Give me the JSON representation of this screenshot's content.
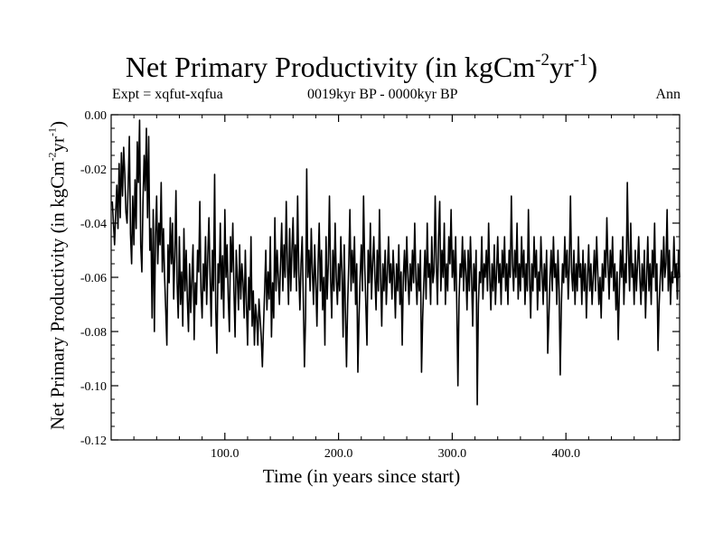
{
  "header": {
    "title_main": "Net Primary Productivity (in kgCm",
    "title_exp1": "-2",
    "title_mid": "yr",
    "title_exp2": "-1",
    "title_end": ")",
    "expt": "Expt = xqfut-xqfua",
    "period": "0019kyr BP - 0000kyr BP",
    "season": "Ann"
  },
  "axes": {
    "xlabel": "Time (in years since start)",
    "ylabel_main": "Net Primary Productivity (in kgCm",
    "ylabel_exp1": "-2",
    "ylabel_mid": "yr",
    "ylabel_exp2": "-1",
    "ylabel_end": ")"
  },
  "chart_data": {
    "type": "line",
    "title": "Net Primary Productivity (in kgCm-2yr-1)",
    "xlabel": "Time (in years since start)",
    "ylabel": "Net Primary Productivity (in kgCm-2yr-1)",
    "xlim": [
      0,
      500
    ],
    "ylim": [
      -0.12,
      0.0
    ],
    "x_ticks": [
      100,
      200,
      300,
      400
    ],
    "x_tick_labels": [
      "100.0",
      "200.0",
      "300.0",
      "400.0"
    ],
    "y_ticks": [
      0.0,
      -0.02,
      -0.04,
      -0.06,
      -0.08,
      -0.1,
      -0.12
    ],
    "y_tick_labels": [
      "0.00",
      "-0.02",
      "-0.04",
      "-0.06",
      "-0.08",
      "-0.10",
      "-0.12"
    ],
    "series": [
      {
        "name": "Ann",
        "x_start": 1,
        "x_step": 1,
        "values": [
          -0.032,
          -0.04,
          -0.048,
          -0.036,
          -0.026,
          -0.042,
          -0.018,
          -0.038,
          -0.014,
          -0.03,
          -0.012,
          -0.022,
          -0.036,
          -0.04,
          -0.026,
          -0.008,
          -0.044,
          -0.055,
          -0.03,
          -0.048,
          -0.024,
          -0.042,
          -0.01,
          -0.025,
          -0.002,
          -0.048,
          -0.058,
          -0.032,
          -0.015,
          -0.028,
          -0.005,
          -0.038,
          -0.008,
          -0.05,
          -0.042,
          -0.075,
          -0.035,
          -0.08,
          -0.045,
          -0.03,
          -0.055,
          -0.04,
          -0.048,
          -0.025,
          -0.058,
          -0.042,
          -0.06,
          -0.072,
          -0.085,
          -0.048,
          -0.062,
          -0.038,
          -0.055,
          -0.04,
          -0.068,
          -0.052,
          -0.028,
          -0.062,
          -0.075,
          -0.045,
          -0.07,
          -0.058,
          -0.078,
          -0.042,
          -0.065,
          -0.05,
          -0.068,
          -0.08,
          -0.055,
          -0.073,
          -0.06,
          -0.048,
          -0.083,
          -0.062,
          -0.07,
          -0.05,
          -0.058,
          -0.032,
          -0.065,
          -0.075,
          -0.055,
          -0.065,
          -0.045,
          -0.07,
          -0.052,
          -0.038,
          -0.06,
          -0.078,
          -0.05,
          -0.065,
          -0.022,
          -0.072,
          -0.088,
          -0.055,
          -0.062,
          -0.04,
          -0.068,
          -0.052,
          -0.075,
          -0.035,
          -0.06,
          -0.048,
          -0.068,
          -0.08,
          -0.045,
          -0.058,
          -0.04,
          -0.065,
          -0.082,
          -0.05,
          -0.06,
          -0.072,
          -0.048,
          -0.068,
          -0.055,
          -0.062,
          -0.075,
          -0.05,
          -0.07,
          -0.085,
          -0.06,
          -0.072,
          -0.045,
          -0.078,
          -0.065,
          -0.085,
          -0.07,
          -0.075,
          -0.085,
          -0.068,
          -0.075,
          -0.082,
          -0.093,
          -0.078,
          -0.065,
          -0.05,
          -0.072,
          -0.058,
          -0.068,
          -0.045,
          -0.082,
          -0.062,
          -0.075,
          -0.038,
          -0.065,
          -0.05,
          -0.06,
          -0.07,
          -0.055,
          -0.04,
          -0.065,
          -0.048,
          -0.06,
          -0.032,
          -0.055,
          -0.07,
          -0.042,
          -0.065,
          -0.05,
          -0.038,
          -0.06,
          -0.048,
          -0.065,
          -0.03,
          -0.058,
          -0.072,
          -0.055,
          -0.045,
          -0.068,
          -0.093,
          -0.075,
          -0.02,
          -0.06,
          -0.05,
          -0.065,
          -0.042,
          -0.058,
          -0.07,
          -0.048,
          -0.062,
          -0.078,
          -0.055,
          -0.04,
          -0.065,
          -0.05,
          -0.072,
          -0.06,
          -0.085,
          -0.045,
          -0.068,
          -0.055,
          -0.03,
          -0.06,
          -0.075,
          -0.05,
          -0.065,
          -0.04,
          -0.06,
          -0.07,
          -0.055,
          -0.065,
          -0.045,
          -0.058,
          -0.082,
          -0.048,
          -0.072,
          -0.093,
          -0.07,
          -0.055,
          -0.035,
          -0.065,
          -0.05,
          -0.062,
          -0.045,
          -0.07,
          -0.055,
          -0.095,
          -0.075,
          -0.06,
          -0.048,
          -0.065,
          -0.03,
          -0.055,
          -0.07,
          -0.085,
          -0.05,
          -0.062,
          -0.04,
          -0.068,
          -0.055,
          -0.045,
          -0.06,
          -0.072,
          -0.05,
          -0.065,
          -0.035,
          -0.06,
          -0.078,
          -0.055,
          -0.065,
          -0.05,
          -0.07,
          -0.058,
          -0.045,
          -0.062,
          -0.055,
          -0.068,
          -0.05,
          -0.06,
          -0.075,
          -0.055,
          -0.065,
          -0.048,
          -0.07,
          -0.058,
          -0.085,
          -0.06,
          -0.05,
          -0.065,
          -0.045,
          -0.06,
          -0.07,
          -0.055,
          -0.065,
          -0.05,
          -0.062,
          -0.04,
          -0.06,
          -0.07,
          -0.055,
          -0.065,
          -0.05,
          -0.095,
          -0.075,
          -0.062,
          -0.05,
          -0.068,
          -0.04,
          -0.06,
          -0.055,
          -0.07,
          -0.045,
          -0.062,
          -0.058,
          -0.03,
          -0.055,
          -0.07,
          -0.045,
          -0.032,
          -0.065,
          -0.05,
          -0.06,
          -0.04,
          -0.07,
          -0.055,
          -0.065,
          -0.045,
          -0.055,
          -0.035,
          -0.06,
          -0.05,
          -0.065,
          -0.045,
          -0.07,
          -0.1,
          -0.068,
          -0.055,
          -0.06,
          -0.045,
          -0.065,
          -0.05,
          -0.058,
          -0.072,
          -0.05,
          -0.065,
          -0.045,
          -0.06,
          -0.078,
          -0.055,
          -0.065,
          -0.05,
          -0.107,
          -0.07,
          -0.058,
          -0.062,
          -0.045,
          -0.068,
          -0.055,
          -0.06,
          -0.05,
          -0.065,
          -0.04,
          -0.06,
          -0.072,
          -0.055,
          -0.065,
          -0.048,
          -0.07,
          -0.058,
          -0.045,
          -0.062,
          -0.055,
          -0.07,
          -0.05,
          -0.06,
          -0.045,
          -0.065,
          -0.055,
          -0.07,
          -0.05,
          -0.06,
          -0.03,
          -0.055,
          -0.065,
          -0.05,
          -0.06,
          -0.04,
          -0.068,
          -0.055,
          -0.065,
          -0.045,
          -0.06,
          -0.05,
          -0.07,
          -0.055,
          -0.065,
          -0.035,
          -0.06,
          -0.075,
          -0.055,
          -0.065,
          -0.045,
          -0.06,
          -0.05,
          -0.072,
          -0.058,
          -0.065,
          -0.045,
          -0.058,
          -0.07,
          -0.055,
          -0.065,
          -0.05,
          -0.088,
          -0.075,
          -0.06,
          -0.05,
          -0.065,
          -0.045,
          -0.06,
          -0.055,
          -0.07,
          -0.05,
          -0.065,
          -0.096,
          -0.07,
          -0.055,
          -0.062,
          -0.045,
          -0.06,
          -0.05,
          -0.068,
          -0.055,
          -0.03,
          -0.058,
          -0.065,
          -0.05,
          -0.07,
          -0.055,
          -0.065,
          -0.045,
          -0.06,
          -0.055,
          -0.07,
          -0.05,
          -0.065,
          -0.055,
          -0.075,
          -0.06,
          -0.048,
          -0.065,
          -0.055,
          -0.07,
          -0.06,
          -0.05,
          -0.065,
          -0.045,
          -0.058,
          -0.07,
          -0.06,
          -0.075,
          -0.055,
          -0.065,
          -0.05,
          -0.06,
          -0.038,
          -0.055,
          -0.068,
          -0.05,
          -0.06,
          -0.045,
          -0.065,
          -0.055,
          -0.072,
          -0.058,
          -0.083,
          -0.065,
          -0.05,
          -0.06,
          -0.045,
          -0.07,
          -0.055,
          -0.062,
          -0.025,
          -0.05,
          -0.065,
          -0.04,
          -0.06,
          -0.055,
          -0.07,
          -0.05,
          -0.065,
          -0.055,
          -0.045,
          -0.06,
          -0.07,
          -0.055,
          -0.065,
          -0.05,
          -0.075,
          -0.06,
          -0.045,
          -0.065,
          -0.055,
          -0.07,
          -0.05,
          -0.06,
          -0.04,
          -0.065,
          -0.055,
          -0.087,
          -0.07,
          -0.06,
          -0.05,
          -0.065,
          -0.045,
          -0.06,
          -0.055,
          -0.035,
          -0.065,
          -0.05,
          -0.07,
          -0.058,
          -0.062,
          -0.045,
          -0.06,
          -0.055,
          -0.068,
          -0.05,
          -0.06
        ]
      }
    ]
  }
}
